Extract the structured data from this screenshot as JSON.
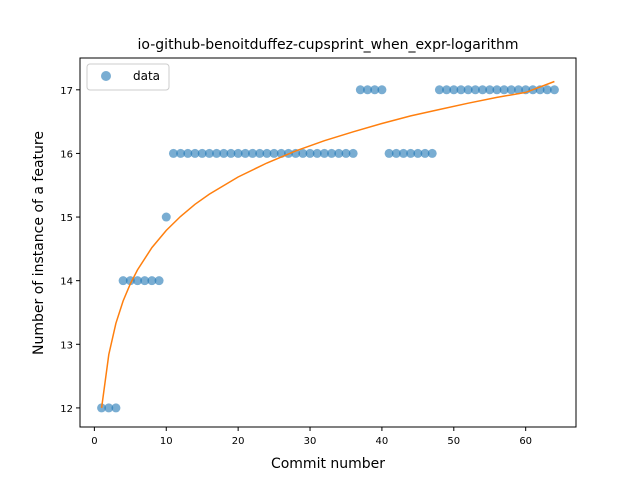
{
  "chart_data": {
    "type": "scatter",
    "title": "io-github-benoitduffez-cupsprint_when_expr-logarithm",
    "xlabel": "Commit number",
    "ylabel": "Number of instance of a feature",
    "xlim": [
      -2,
      67
    ],
    "ylim": [
      11.7,
      17.5
    ],
    "xticks": [
      0,
      10,
      20,
      30,
      40,
      50,
      60
    ],
    "yticks": [
      12,
      13,
      14,
      15,
      16,
      17
    ],
    "grid": false,
    "legend": {
      "position": "top-left",
      "entries": [
        "data"
      ]
    },
    "colors": {
      "data": "#1f77b4",
      "fit": "#ff7f0e"
    },
    "series": [
      {
        "name": "data",
        "kind": "scatter",
        "x": [
          1,
          2,
          3,
          4,
          5,
          6,
          7,
          8,
          9,
          10,
          11,
          12,
          13,
          14,
          15,
          16,
          17,
          18,
          19,
          20,
          21,
          22,
          23,
          24,
          25,
          26,
          27,
          28,
          29,
          30,
          31,
          32,
          33,
          34,
          35,
          36,
          37,
          38,
          39,
          40,
          41,
          42,
          43,
          44,
          45,
          46,
          47,
          48,
          49,
          50,
          51,
          52,
          53,
          54,
          55,
          56,
          57,
          58,
          59,
          60,
          61,
          62,
          63,
          64
        ],
        "y": [
          12,
          12,
          12,
          14,
          14,
          14,
          14,
          14,
          14,
          15,
          16,
          16,
          16,
          16,
          16,
          16,
          16,
          16,
          16,
          16,
          16,
          16,
          16,
          16,
          16,
          16,
          16,
          16,
          16,
          16,
          16,
          16,
          16,
          16,
          16,
          16,
          17,
          17,
          17,
          17,
          16,
          16,
          16,
          16,
          16,
          16,
          16,
          17,
          17,
          17,
          17,
          17,
          17,
          17,
          17,
          17,
          17,
          17,
          17,
          17,
          17,
          17,
          17,
          17
        ]
      },
      {
        "kind": "line",
        "x": [
          1,
          2,
          3,
          4,
          5,
          6,
          8,
          10,
          12,
          14,
          16,
          20,
          24,
          28,
          32,
          36,
          40,
          44,
          48,
          52,
          56,
          60,
          64
        ],
        "y": [
          12.0,
          12.84,
          13.33,
          13.68,
          13.95,
          14.17,
          14.52,
          14.79,
          15.01,
          15.2,
          15.36,
          15.63,
          15.85,
          16.04,
          16.2,
          16.34,
          16.47,
          16.59,
          16.69,
          16.79,
          16.88,
          16.96,
          17.13
        ]
      }
    ]
  }
}
